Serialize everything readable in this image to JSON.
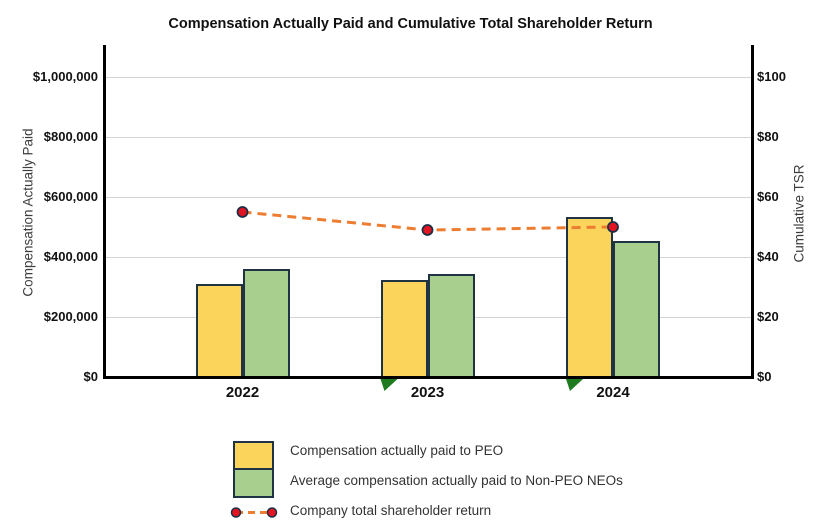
{
  "chart_data": {
    "type": "bar",
    "subtype": "grouped-bars-with-dashed-line-dual-axis",
    "title": "Compensation Actually Paid and Cumulative Total Shareholder Return",
    "categories": [
      "2022",
      "2023",
      "2024"
    ],
    "series": [
      {
        "name": "Compensation actually paid to PEO",
        "type": "bar",
        "axis": "left",
        "color": "#FBD45C",
        "values": [
          310000,
          325000,
          535000
        ]
      },
      {
        "name": "Average compensation actually paid to Non-PEO NEOs",
        "type": "bar",
        "axis": "left",
        "color": "#A8CF8D",
        "values": [
          360000,
          345000,
          455000
        ]
      },
      {
        "name": "Company total shareholder return",
        "type": "line",
        "axis": "right",
        "color": "#ED7D31",
        "marker_color": "#E11422",
        "line_style": "dashed",
        "values": [
          55,
          49,
          50
        ]
      }
    ],
    "left_axis": {
      "label": "Compensation Actually Paid",
      "range": [
        0,
        1100000
      ],
      "ticks": [
        {
          "label": "$1,000,000",
          "value": 1000000
        },
        {
          "label": "$800,000",
          "value": 800000
        },
        {
          "label": "$600,000",
          "value": 600000
        },
        {
          "label": "$400,000",
          "value": 400000
        },
        {
          "label": "$200,000",
          "value": 200000
        },
        {
          "label": "$0",
          "value": 0
        }
      ]
    },
    "right_axis": {
      "label": "Cumulative TSR",
      "range": [
        0,
        110
      ],
      "ticks": [
        {
          "label": "$100",
          "value": 100
        },
        {
          "label": "$80",
          "value": 80
        },
        {
          "label": "$60",
          "value": 60
        },
        {
          "label": "$40",
          "value": 40
        },
        {
          "label": "$20",
          "value": 20
        },
        {
          "label": "$0",
          "value": 0
        }
      ]
    },
    "grid": "horizontal-major-only",
    "legend_position": "bottom",
    "baseline_markers": {
      "categories": [
        "2023",
        "2024"
      ],
      "color": "#1E7B20"
    }
  },
  "legend": {
    "items": [
      {
        "label": "Compensation actually paid to PEO",
        "swatch": "yellow-box"
      },
      {
        "label": "Average compensation actually paid to Non-PEO NEOs",
        "swatch": "green-box"
      },
      {
        "label": "Company total shareholder return",
        "swatch": "dashed-line-with-red-dots"
      }
    ]
  },
  "colors": {
    "peo_bar": "#FBD45C",
    "neo_bar": "#A8CF8D",
    "bar_border": "#203344",
    "tsr_line": "#ED7D31",
    "tsr_marker": "#E11422",
    "marker_border": "#1C2F45",
    "gridline": "#D4D4D4",
    "axis_line": "#000000",
    "flag": "#1E7B20"
  }
}
